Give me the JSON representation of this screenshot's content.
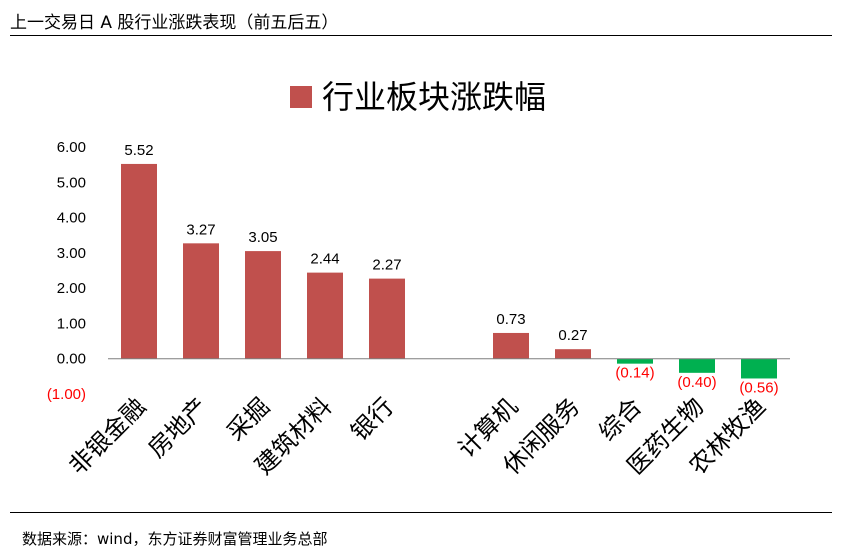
{
  "page": {
    "title": "上一交易日 A 股行业涨跌表现（前五后五）",
    "source": "数据来源：wind，东方证券财富管理业务总部"
  },
  "colors": {
    "positive": "#C0504D",
    "negative": "#00B050",
    "negative_label": "#FF0000",
    "axis": "#000000"
  },
  "chart_data": {
    "type": "bar",
    "title": "",
    "xlabel": "",
    "ylabel": "",
    "ylim": [
      -1.0,
      6.0
    ],
    "yticks": [
      6.0,
      5.0,
      4.0,
      3.0,
      2.0,
      1.0,
      0.0,
      -1.0
    ],
    "ytick_labels": [
      "6.00",
      "5.00",
      "4.00",
      "3.00",
      "2.00",
      "1.00",
      "0.00",
      "(1.00)"
    ],
    "categories": [
      "非银金融",
      "房地产",
      "采掘",
      "建筑材料",
      "银行",
      "",
      "计算机",
      "休闲服务",
      "综合",
      "医药生物",
      "农林牧渔"
    ],
    "series": [
      {
        "name": "行业板块涨跌幅",
        "values": [
          5.52,
          3.27,
          3.05,
          2.44,
          2.27,
          null,
          0.73,
          0.27,
          -0.14,
          -0.4,
          -0.56
        ],
        "labels": [
          "5.52",
          "3.27",
          "3.05",
          "2.44",
          "2.27",
          "",
          "0.73",
          "0.27",
          "(0.14)",
          "(0.40)",
          "(0.56)"
        ]
      }
    ],
    "legend": "top-center",
    "grid": false
  }
}
